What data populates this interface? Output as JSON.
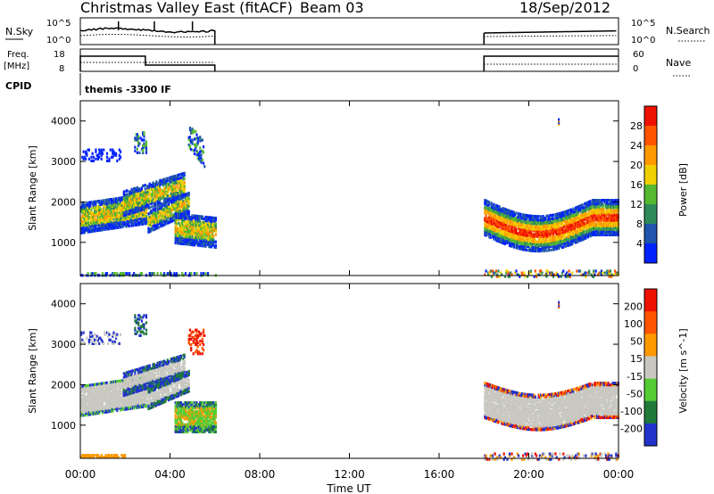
{
  "header": {
    "title": "Christmas Valley East (fitACF)",
    "beam": "Beam 03",
    "date": "18/Sep/2012"
  },
  "panels": {
    "nsky": {
      "label": "N.Sky",
      "ticks": [
        "10^5",
        "10^0"
      ],
      "right_label": "N.Search",
      "right_ticks": [
        "10^5",
        "10^0"
      ]
    },
    "freq": {
      "label_top": "Freq.",
      "label_unit": "[MHz]",
      "ticks": [
        "18",
        "8"
      ],
      "right_label": "Nave",
      "right_ticks": [
        "60",
        "0"
      ]
    },
    "cpid": {
      "label": "CPID",
      "program": "themis -3300 IF"
    }
  },
  "colors": {
    "power": [
      "#0022ff",
      "#1f55aa",
      "#2e8a5a",
      "#55b830",
      "#f0d000",
      "#ff9900",
      "#ff5500",
      "#ee1100"
    ],
    "velocity": [
      "#2233cc",
      "#1f7a3a",
      "#55cc33",
      "#c8c8c0",
      "#ff9900",
      "#ff5500",
      "#ee1100"
    ]
  },
  "chart_data": [
    {
      "type": "heatmap",
      "title": "",
      "xlabel": "",
      "ylabel": "Slant Range [km]",
      "x_ticks": [
        "00:00",
        "04:00",
        "08:00",
        "12:00",
        "16:00",
        "20:00",
        "00:00"
      ],
      "y_ticks": [
        "1000",
        "2000",
        "3000",
        "4000"
      ],
      "y_tick_values": [
        1000,
        2000,
        3000,
        4000
      ],
      "xlim_hours": [
        0,
        24
      ],
      "ylim_km": [
        180,
        4500
      ],
      "colorbar": {
        "label": "Power [dB]",
        "ticks": [
          "28",
          "24",
          "20",
          "16",
          "12",
          "8",
          "4"
        ],
        "range": [
          0,
          30
        ]
      },
      "data_gaps_hours": [
        [
          6,
          18
        ]
      ]
    },
    {
      "type": "heatmap",
      "title": "",
      "xlabel": "Time UT",
      "ylabel": "Slant Range [km]",
      "x_ticks": [
        "00:00",
        "04:00",
        "08:00",
        "12:00",
        "16:00",
        "20:00",
        "00:00"
      ],
      "y_ticks": [
        "1000",
        "2000",
        "3000",
        "4000"
      ],
      "y_tick_values": [
        1000,
        2000,
        3000,
        4000
      ],
      "xlim_hours": [
        0,
        24
      ],
      "ylim_km": [
        180,
        4500
      ],
      "colorbar": {
        "label": "Velocity [m s^-1]",
        "ticks": [
          "200",
          "100",
          "50",
          "15",
          "-15",
          "-50",
          "-100",
          "-200"
        ],
        "range": [
          -250,
          250
        ]
      },
      "data_gaps_hours": [
        [
          6,
          18
        ]
      ]
    }
  ]
}
